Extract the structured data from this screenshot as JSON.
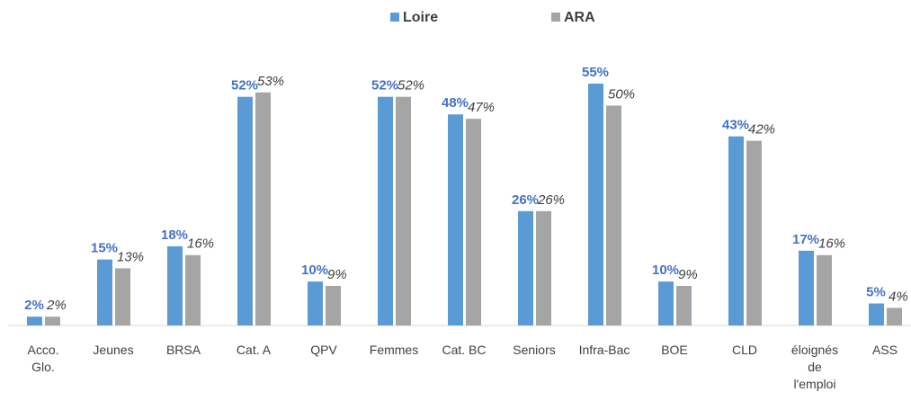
{
  "chart_data": {
    "type": "bar",
    "categories": [
      "Acco. Glo.",
      "Jeunes",
      "BRSA",
      "Cat. A",
      "QPV",
      "Femmes",
      "Cat. BC",
      "Seniors",
      "Infra-Bac",
      "BOE",
      "CLD",
      "éloignés de l'emploi",
      "ASS"
    ],
    "series": [
      {
        "name": "Loire",
        "color": "#5b9bd5",
        "values": [
          2,
          15,
          18,
          52,
          10,
          52,
          48,
          26,
          55,
          10,
          43,
          17,
          5
        ],
        "value_labels": [
          "2%",
          "15%",
          "18%",
          "52%",
          "10%",
          "52%",
          "48%",
          "26%",
          "55%",
          "10%",
          "43%",
          "17%",
          "5%"
        ]
      },
      {
        "name": "ARA",
        "color": "#a5a5a5",
        "values": [
          2,
          13,
          16,
          53,
          9,
          52,
          47,
          26,
          50,
          9,
          42,
          16,
          4
        ],
        "value_labels": [
          "2%",
          "13%",
          "16%",
          "53%",
          "9%",
          "52%",
          "47%",
          "26%",
          "50%",
          "9%",
          "42%",
          "16%",
          "4%"
        ]
      }
    ],
    "ylim": [
      0,
      55
    ],
    "legend": "top"
  }
}
